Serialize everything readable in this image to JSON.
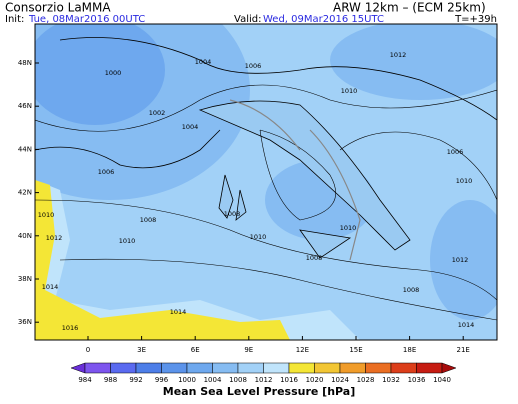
{
  "header": {
    "institution": "Consorzio LaMMA",
    "model": "ARW 12km – (ECM 25km)",
    "init_label": "Init:",
    "init_time": "Tue, 08Mar2016 00UTC",
    "valid_label": "Valid:",
    "valid_time": "Wed, 09Mar2016 15UTC",
    "lead_time": "T=+39h"
  },
  "map": {
    "lat_labels": [
      "48N",
      "46N",
      "44N",
      "42N",
      "40N",
      "38N",
      "36N"
    ],
    "lon_labels": [
      "0",
      "3E",
      "6E",
      "9E",
      "12E",
      "15E",
      "18E",
      "21E"
    ],
    "contour_labels": [
      1000,
      1002,
      1004,
      1004,
      1006,
      1006,
      1006,
      1008,
      1008,
      1008,
      1008,
      1010,
      1010,
      1010,
      1010,
      1010,
      1010,
      1012,
      1012,
      1012,
      1014,
      1014,
      1014,
      1016
    ]
  },
  "colorbar": {
    "title": "Mean Sea Level Pressure [hPa]",
    "ticks": [
      984,
      988,
      992,
      996,
      1000,
      1004,
      1008,
      1012,
      1016,
      1020,
      1024,
      1028,
      1032,
      1036,
      1040
    ],
    "colors": [
      "#6a2fd8",
      "#7d55ee",
      "#5a6af0",
      "#4d7ee8",
      "#5b93ea",
      "#6ea8ee",
      "#86bcf2",
      "#a2d1f7",
      "#c0e4fb",
      "#f4e636",
      "#f2c634",
      "#f09c2a",
      "#ea6e22",
      "#dc3e1a",
      "#c61c12",
      "#a80c0c"
    ]
  }
}
